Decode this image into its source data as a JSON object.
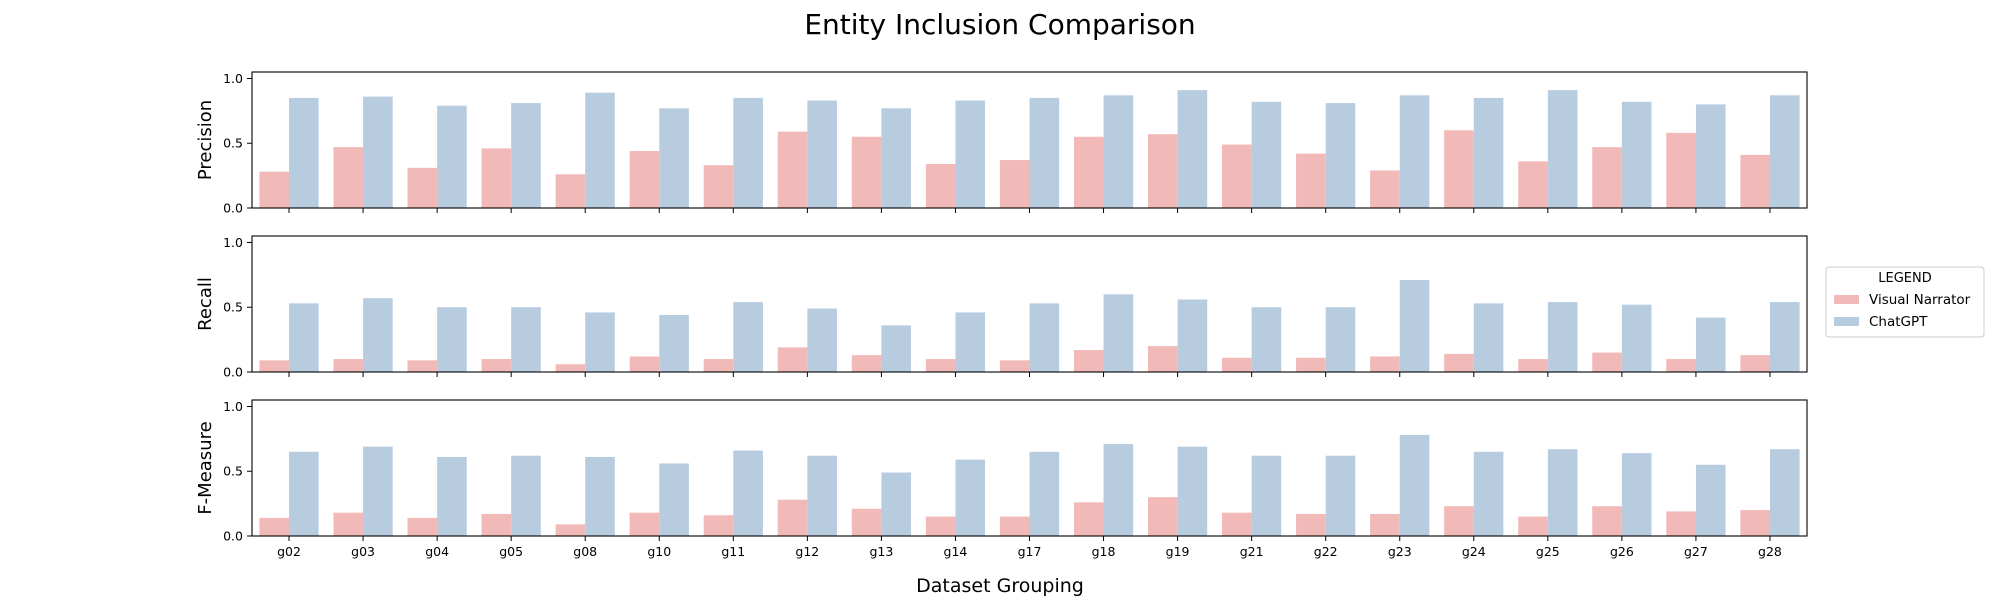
{
  "chart_data": {
    "type": "bar",
    "title": "Entity Inclusion Comparison",
    "xlabel": "Dataset Grouping",
    "categories": [
      "g02",
      "g03",
      "g04",
      "g05",
      "g08",
      "g10",
      "g11",
      "g12",
      "g13",
      "g14",
      "g17",
      "g18",
      "g19",
      "g21",
      "g22",
      "g23",
      "g24",
      "g25",
      "g26",
      "g27",
      "g28"
    ],
    "legend": {
      "title": "LEGEND",
      "placement": "right",
      "entries": [
        "Visual Narrator",
        "ChatGPT"
      ]
    },
    "colors": {
      "Visual Narrator": "#f1b9b7",
      "ChatGPT": "#b8cce0"
    },
    "grid": false,
    "panels": [
      {
        "ylabel": "Precision",
        "ylim": [
          0,
          1.05
        ],
        "yticks": [
          "0.0",
          "0.5",
          "1.0"
        ],
        "series": [
          {
            "name": "Visual Narrator",
            "values": [
              0.28,
              0.47,
              0.31,
              0.46,
              0.26,
              0.44,
              0.33,
              0.59,
              0.55,
              0.34,
              0.37,
              0.55,
              0.57,
              0.49,
              0.42,
              0.29,
              0.6,
              0.36,
              0.47,
              0.58,
              0.41
            ]
          },
          {
            "name": "ChatGPT",
            "values": [
              0.85,
              0.86,
              0.79,
              0.81,
              0.89,
              0.77,
              0.85,
              0.83,
              0.77,
              0.83,
              0.85,
              0.87,
              0.91,
              0.82,
              0.81,
              0.87,
              0.85,
              0.91,
              0.82,
              0.8,
              0.87
            ]
          }
        ]
      },
      {
        "ylabel": "Recall",
        "ylim": [
          0,
          1.05
        ],
        "yticks": [
          "0.0",
          "0.5",
          "1.0"
        ],
        "series": [
          {
            "name": "Visual Narrator",
            "values": [
              0.09,
              0.1,
              0.09,
              0.1,
              0.06,
              0.12,
              0.1,
              0.19,
              0.13,
              0.1,
              0.09,
              0.17,
              0.2,
              0.11,
              0.11,
              0.12,
              0.14,
              0.1,
              0.15,
              0.1,
              0.13
            ]
          },
          {
            "name": "ChatGPT",
            "values": [
              0.53,
              0.57,
              0.5,
              0.5,
              0.46,
              0.44,
              0.54,
              0.49,
              0.36,
              0.46,
              0.53,
              0.6,
              0.56,
              0.5,
              0.5,
              0.71,
              0.53,
              0.54,
              0.52,
              0.42,
              0.54
            ]
          }
        ]
      },
      {
        "ylabel": "F-Measure",
        "ylim": [
          0,
          1.05
        ],
        "yticks": [
          "0.0",
          "0.5",
          "1.0"
        ],
        "series": [
          {
            "name": "Visual Narrator",
            "values": [
              0.14,
              0.18,
              0.14,
              0.17,
              0.09,
              0.18,
              0.16,
              0.28,
              0.21,
              0.15,
              0.15,
              0.26,
              0.3,
              0.18,
              0.17,
              0.17,
              0.23,
              0.15,
              0.23,
              0.19,
              0.2
            ]
          },
          {
            "name": "ChatGPT",
            "values": [
              0.65,
              0.69,
              0.61,
              0.62,
              0.61,
              0.56,
              0.66,
              0.62,
              0.49,
              0.59,
              0.65,
              0.71,
              0.69,
              0.62,
              0.62,
              0.78,
              0.65,
              0.67,
              0.64,
              0.55,
              0.67
            ]
          }
        ]
      }
    ]
  }
}
